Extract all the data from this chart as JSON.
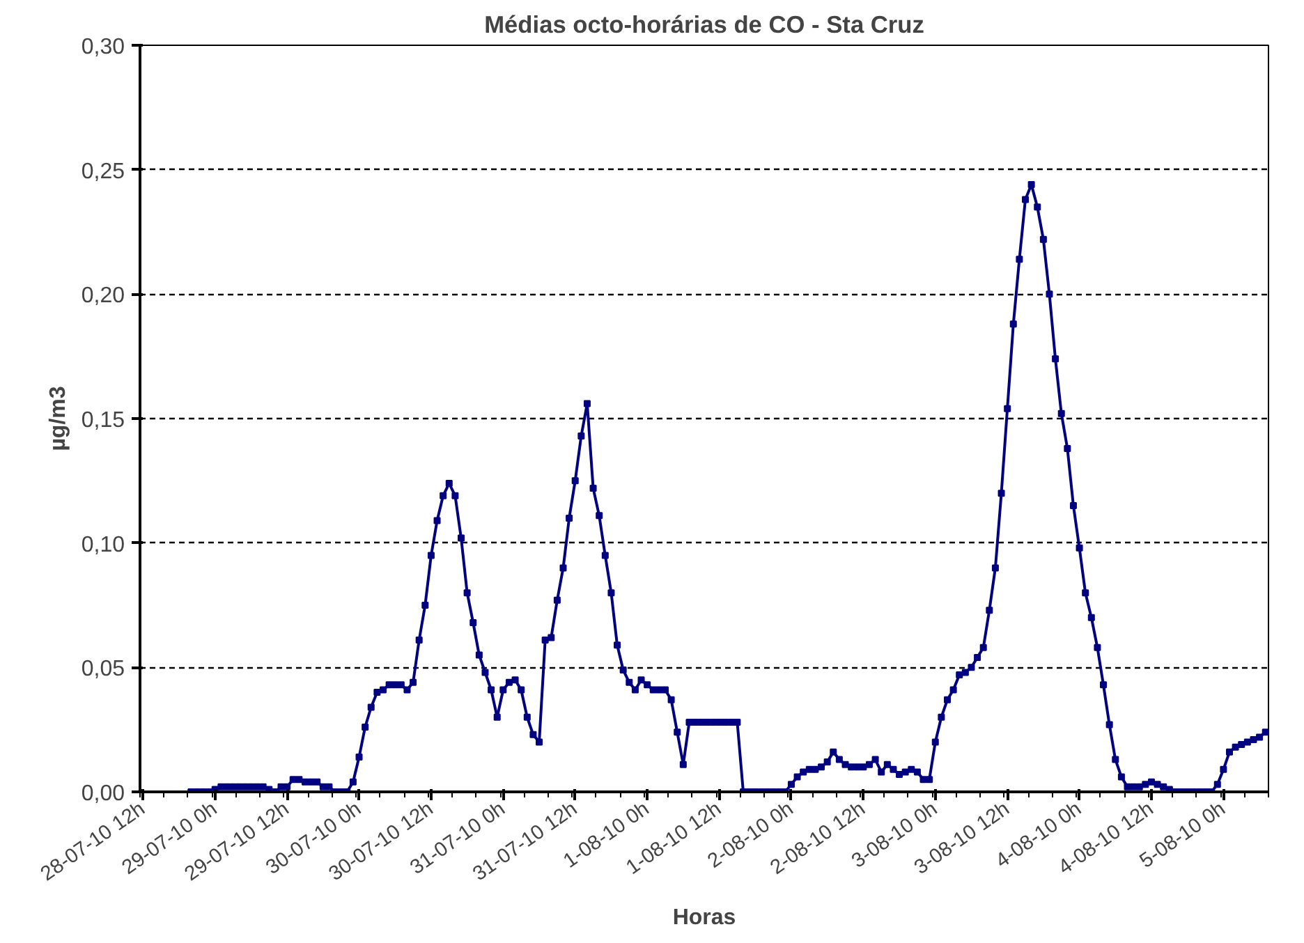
{
  "chart_data": {
    "type": "line",
    "title": "Médias octo-horárias de CO - Sta Cruz",
    "xlabel": "Horas",
    "ylabel": "µg/m3",
    "categories": [
      "28-07-10 12h",
      null,
      null,
      null,
      null,
      null,
      null,
      null,
      null,
      null,
      null,
      null,
      "29-07-10 0h",
      null,
      null,
      null,
      null,
      null,
      null,
      null,
      null,
      null,
      null,
      null,
      "29-07-10 12h",
      null,
      null,
      null,
      null,
      null,
      null,
      null,
      null,
      null,
      null,
      null,
      "30-07-10 0h",
      null,
      null,
      null,
      null,
      null,
      null,
      null,
      null,
      null,
      null,
      null,
      "30-07-10 12h",
      null,
      null,
      null,
      null,
      null,
      null,
      null,
      null,
      null,
      null,
      null,
      "31-07-10 0h",
      null,
      null,
      null,
      null,
      null,
      null,
      null,
      null,
      null,
      null,
      null,
      "31-07-10 12h",
      null,
      null,
      null,
      null,
      null,
      null,
      null,
      null,
      null,
      null,
      null,
      "1-08-10 0h",
      null,
      null,
      null,
      null,
      null,
      null,
      null,
      null,
      null,
      null,
      null,
      "1-08-10 12h",
      null,
      null,
      null,
      null,
      null,
      null,
      null,
      null,
      null,
      null,
      null,
      "2-08-10 0h",
      null,
      null,
      null,
      null,
      null,
      null,
      null,
      null,
      null,
      null,
      null,
      "2-08-10 12h",
      null,
      null,
      null,
      null,
      null,
      null,
      null,
      null,
      null,
      null,
      null,
      "3-08-10 0h",
      null,
      null,
      null,
      null,
      null,
      null,
      null,
      null,
      null,
      null,
      null,
      "3-08-10 12h",
      null,
      null,
      null,
      null,
      null,
      null,
      null,
      null,
      null,
      null,
      null,
      "4-08-10 0h",
      null,
      null,
      null,
      null,
      null,
      null,
      null,
      null,
      null,
      null,
      null,
      "4-08-10 12h",
      null,
      null,
      null,
      null,
      null,
      null,
      null,
      null,
      null,
      null,
      null,
      "5-08-10 0h",
      null,
      null,
      null,
      null,
      null,
      null,
      null
    ],
    "series": [
      {
        "color": "#000080",
        "values": [
          null,
          null,
          null,
          null,
          null,
          null,
          null,
          null,
          0,
          0,
          0,
          0,
          0.001,
          0.002,
          0.002,
          0.002,
          0.002,
          0.002,
          0.002,
          0.002,
          0.002,
          0.001,
          0,
          0.002,
          0.002,
          0.005,
          0.005,
          0.004,
          0.004,
          0.004,
          0.002,
          0.002,
          0,
          0,
          0,
          0.004,
          0.014,
          0.026,
          0.034,
          0.04,
          0.041,
          0.043,
          0.043,
          0.043,
          0.041,
          0.044,
          0.061,
          0.075,
          0.095,
          0.109,
          0.119,
          0.124,
          0.119,
          0.102,
          0.08,
          0.068,
          0.055,
          0.048,
          0.041,
          0.03,
          0.041,
          0.044,
          0.045,
          0.041,
          0.03,
          0.023,
          0.02,
          0.061,
          0.062,
          0.077,
          0.09,
          0.11,
          0.125,
          0.143,
          0.156,
          0.122,
          0.111,
          0.095,
          0.08,
          0.059,
          0.049,
          0.044,
          0.041,
          0.045,
          0.043,
          0.041,
          0.041,
          0.041,
          0.037,
          0.024,
          0.011,
          0.028,
          0.028,
          0.028,
          0.028,
          0.028,
          0.028,
          0.028,
          0.028,
          0.028,
          0,
          0,
          0,
          0,
          0,
          0,
          0,
          0,
          0.003,
          0.006,
          0.008,
          0.009,
          0.009,
          0.01,
          0.012,
          0.016,
          0.013,
          0.011,
          0.01,
          0.01,
          0.01,
          0.011,
          0.013,
          0.008,
          0.011,
          0.009,
          0.007,
          0.008,
          0.009,
          0.008,
          0.005,
          0.005,
          0.02,
          0.03,
          0.037,
          0.041,
          0.047,
          0.048,
          0.05,
          0.054,
          0.058,
          0.073,
          0.09,
          0.12,
          0.154,
          0.188,
          0.214,
          0.238,
          0.244,
          0.235,
          0.222,
          0.2,
          0.174,
          0.152,
          0.138,
          0.115,
          0.098,
          0.08,
          0.07,
          0.058,
          0.043,
          0.027,
          0.013,
          0.006,
          0.002,
          0.002,
          0.002,
          0.003,
          0.004,
          0.003,
          0.002,
          0.001,
          0,
          0,
          0,
          0,
          0,
          0,
          0,
          0.003,
          0.009,
          0.016,
          0.018,
          0.019,
          0.02,
          0.021,
          0.022,
          0.024
        ]
      }
    ],
    "ylim": [
      0,
      0.3
    ],
    "yticks": [
      {
        "value": 0,
        "label": "0,00"
      },
      {
        "value": 0.05,
        "label": "0,05"
      },
      {
        "value": 0.1,
        "label": "0,10"
      },
      {
        "value": 0.15,
        "label": "0,15"
      },
      {
        "value": 0.2,
        "label": "0,20"
      },
      {
        "value": 0.25,
        "label": "0,25"
      },
      {
        "value": 0.3,
        "label": "0,30"
      }
    ],
    "grid": "y",
    "marker": "square",
    "line_style": "solid"
  }
}
